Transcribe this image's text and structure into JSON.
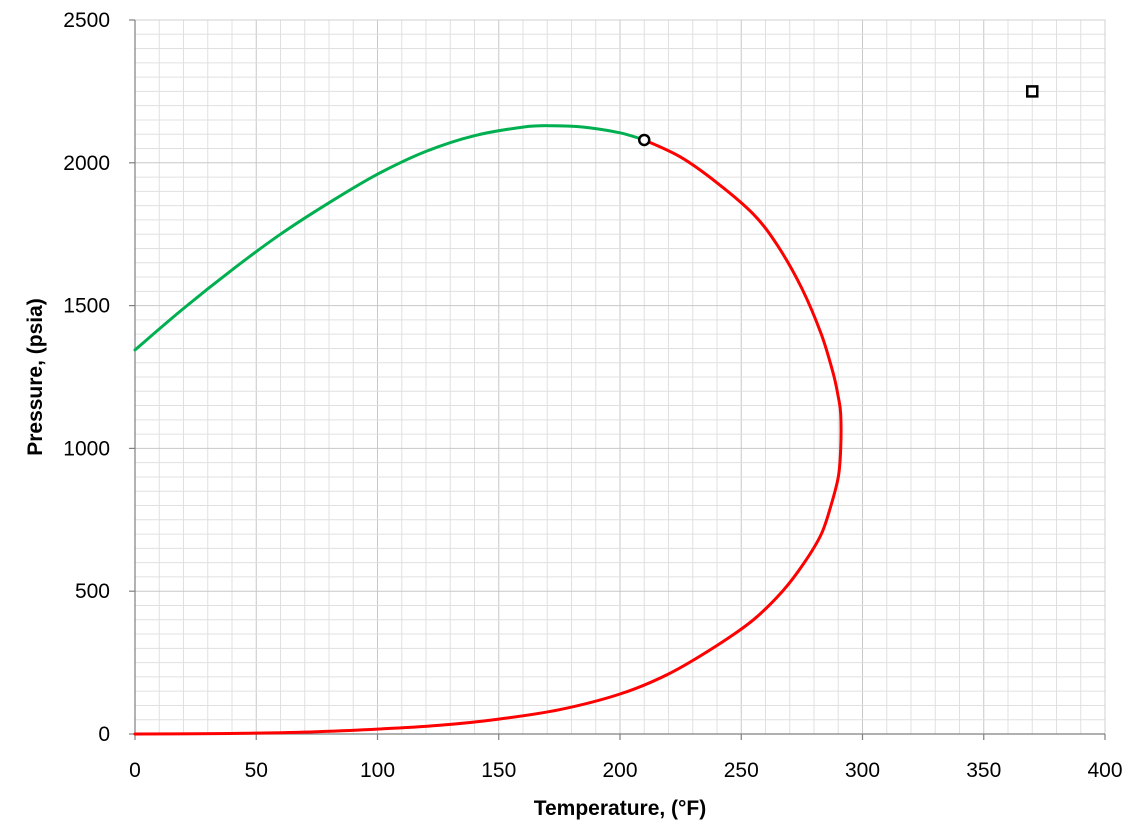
{
  "chart_data": {
    "type": "line",
    "title": "",
    "xlabel": "Temperature, (°F)",
    "ylabel": "Pressure, (psia)",
    "xlim": [
      0,
      400
    ],
    "ylim": [
      0,
      2500
    ],
    "x_ticks": [
      0,
      50,
      100,
      150,
      200,
      250,
      300,
      350,
      400
    ],
    "y_ticks": [
      0,
      500,
      1000,
      1500,
      2000,
      2500
    ],
    "x_tick_labels": [
      "0",
      "50",
      "100",
      "150",
      "200",
      "250",
      "300",
      "350",
      "400"
    ],
    "y_tick_labels": [
      "0",
      "500",
      "1000",
      "1500",
      "2000",
      "2500"
    ],
    "grid": true,
    "legend": "none",
    "series": [
      {
        "color": "#00b050",
        "points": [
          [
            0,
            1345
          ],
          [
            20,
            1490
          ],
          [
            40,
            1625
          ],
          [
            60,
            1750
          ],
          [
            80,
            1860
          ],
          [
            100,
            1960
          ],
          [
            120,
            2040
          ],
          [
            140,
            2095
          ],
          [
            160,
            2125
          ],
          [
            172,
            2130
          ],
          [
            185,
            2125
          ],
          [
            200,
            2105
          ],
          [
            210,
            2080
          ]
        ]
      },
      {
        "color": "#ff0000",
        "points": [
          [
            210,
            2080
          ],
          [
            225,
            2020
          ],
          [
            240,
            1930
          ],
          [
            255,
            1820
          ],
          [
            265,
            1710
          ],
          [
            275,
            1560
          ],
          [
            283,
            1400
          ],
          [
            288,
            1260
          ],
          [
            290,
            1180
          ],
          [
            291,
            1120
          ],
          [
            291,
            1000
          ],
          [
            290,
            900
          ],
          [
            287,
            800
          ],
          [
            283,
            700
          ],
          [
            276,
            600
          ],
          [
            267,
            500
          ],
          [
            255,
            400
          ],
          [
            240,
            310
          ],
          [
            220,
            210
          ],
          [
            200,
            140
          ],
          [
            175,
            85
          ],
          [
            150,
            52
          ],
          [
            125,
            30
          ],
          [
            100,
            17
          ],
          [
            75,
            8
          ],
          [
            50,
            3
          ],
          [
            25,
            1
          ],
          [
            0,
            0
          ]
        ]
      }
    ],
    "markers": [
      {
        "shape": "circle",
        "x": 210,
        "y": 2080
      },
      {
        "shape": "square",
        "x": 370,
        "y": 2250
      }
    ]
  }
}
